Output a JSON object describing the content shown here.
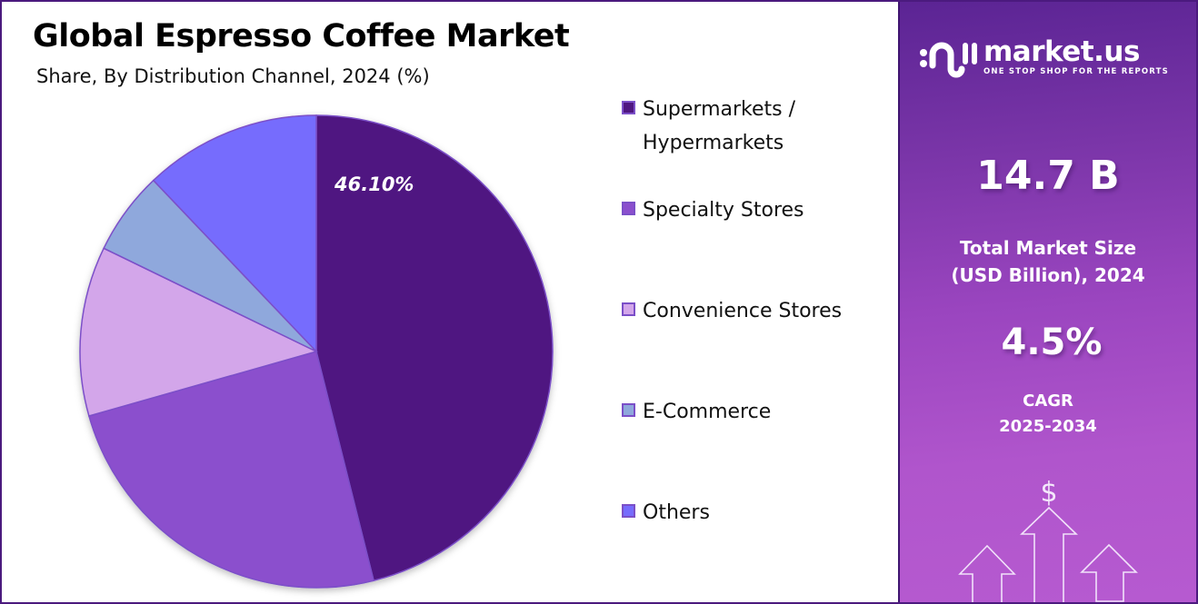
{
  "header": {
    "title": "Global Espresso Coffee Market",
    "subtitle": "Share, By Distribution Channel, 2024 (%)"
  },
  "chart_data": {
    "type": "pie",
    "title": "Global Espresso Coffee Market",
    "subtitle": "Share, By Distribution Channel, 2024 (%)",
    "categories": [
      "Supermarkets / Hypermarkets",
      "Specialty Stores",
      "Convenience Stores",
      "E-Commerce",
      "Others"
    ],
    "values": [
      46.1,
      24.5,
      11.6,
      5.7,
      12.1
    ],
    "colors": [
      "#4f1781",
      "#8b4fcd",
      "#d3a6ea",
      "#8fa8dc",
      "#766cfd"
    ],
    "data_labels": [
      {
        "category": "Supermarkets / Hypermarkets",
        "text": "46.10%"
      }
    ],
    "start_angle": "12 o'clock",
    "direction": "clockwise",
    "legend_position": "right"
  },
  "legend": {
    "items": [
      {
        "line1": "Supermarkets /",
        "line2": "Hypermarkets",
        "color": "#4f1781"
      },
      {
        "line1": "Specialty Stores",
        "line2": "",
        "color": "#8b4fcd"
      },
      {
        "line1": "Convenience Stores",
        "line2": "",
        "color": "#d3a6ea"
      },
      {
        "line1": "E-Commerce",
        "line2": "",
        "color": "#8fa8dc"
      },
      {
        "line1": "Others",
        "line2": "",
        "color": "#766cfd"
      }
    ]
  },
  "side_panel": {
    "logo": {
      "icon": "market-us-logo-icon",
      "name": "market.us",
      "tagline": "ONE STOP SHOP FOR THE REPORTS"
    },
    "market_size": {
      "value": "14.7 B",
      "label_line1": "Total Market Size",
      "label_line2": "(USD Billion), 2024"
    },
    "cagr": {
      "value": "4.5%",
      "label_line1": "CAGR",
      "label_line2": "2025-2034"
    },
    "decoration": {
      "icon": "dollar-growth-arrows-icon",
      "symbol": "$"
    }
  }
}
